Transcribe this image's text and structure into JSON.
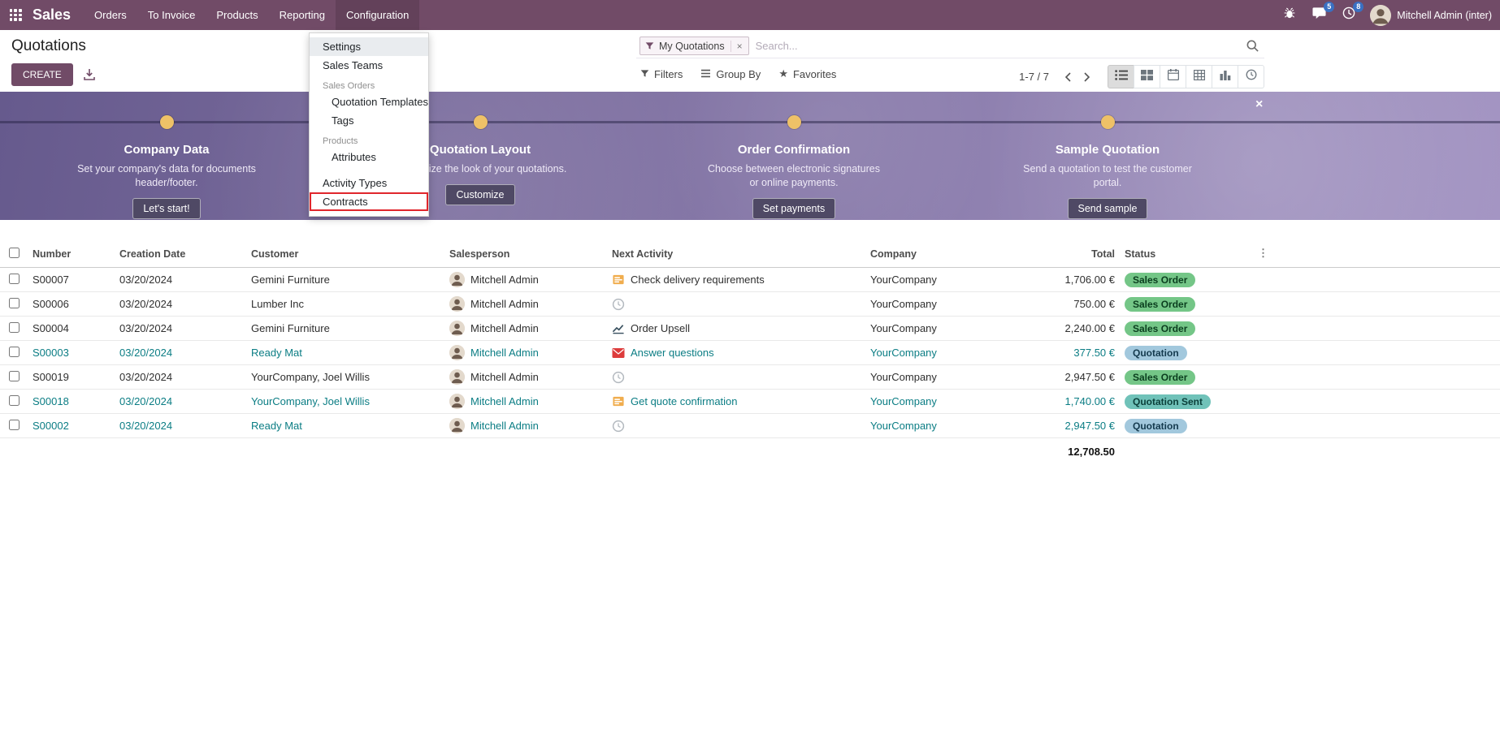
{
  "navbar": {
    "brand": "Sales",
    "items": [
      "Orders",
      "To Invoice",
      "Products",
      "Reporting",
      "Configuration"
    ],
    "active_item": "Configuration",
    "message_badge": "5",
    "activity_badge": "8",
    "user_name": "Mitchell Admin (inter)"
  },
  "control_panel": {
    "title": "Quotations",
    "create_label": "CREATE",
    "search": {
      "facet_label": "My Quotations",
      "remove_facet": "×",
      "placeholder": "Search..."
    },
    "filter_buttons": {
      "filters": "Filters",
      "group_by": "Group By",
      "favorites": "Favorites"
    },
    "pager": "1-7 / 7",
    "options_toggle": "⋮"
  },
  "config_menu": {
    "items": [
      {
        "label": "Settings",
        "kind": "item",
        "selected": true
      },
      {
        "label": "Sales Teams",
        "kind": "item"
      },
      {
        "label": "Sales Orders",
        "kind": "section"
      },
      {
        "label": "Quotation Templates",
        "kind": "subitem"
      },
      {
        "label": "Tags",
        "kind": "subitem"
      },
      {
        "label": "Products",
        "kind": "section"
      },
      {
        "label": "Attributes",
        "kind": "subitem"
      },
      {
        "label": "Activity Types",
        "kind": "item",
        "top_gap": true
      },
      {
        "label": "Contracts",
        "kind": "item",
        "annotated": true
      }
    ]
  },
  "onboarding": {
    "close": "×",
    "steps": [
      {
        "title": "Company Data",
        "description": "Set your company's data for documents header/footer.",
        "button": "Let's start!"
      },
      {
        "title": "Quotation Layout",
        "description": "Customize the look of your quotations.",
        "button": "Customize"
      },
      {
        "title": "Order Confirmation",
        "description": "Choose between electronic signatures or online payments.",
        "button": "Set payments"
      },
      {
        "title": "Sample Quotation",
        "description": "Send a quotation to test the customer portal.",
        "button": "Send sample"
      }
    ]
  },
  "table": {
    "columns": [
      "Number",
      "Creation Date",
      "Customer",
      "Salesperson",
      "Next Activity",
      "Company",
      "Total",
      "Status"
    ],
    "rows": [
      {
        "number": "S00007",
        "date": "03/20/2024",
        "customer": "Gemini Furniture",
        "salesperson": "Mitchell Admin",
        "activity_icon": "tasks",
        "activity": "Check delivery requirements",
        "company": "YourCompany",
        "total": "1,706.00 €",
        "status": "Sales Order",
        "status_kind": "success",
        "colored": false
      },
      {
        "number": "S00006",
        "date": "03/20/2024",
        "customer": "Lumber Inc",
        "salesperson": "Mitchell Admin",
        "activity_icon": "clock",
        "activity": "",
        "company": "YourCompany",
        "total": "750.00 €",
        "status": "Sales Order",
        "status_kind": "success",
        "colored": false
      },
      {
        "number": "S00004",
        "date": "03/20/2024",
        "customer": "Gemini Furniture",
        "salesperson": "Mitchell Admin",
        "activity_icon": "chart",
        "activity": "Order Upsell",
        "company": "YourCompany",
        "total": "2,240.00 €",
        "status": "Sales Order",
        "status_kind": "success",
        "colored": false
      },
      {
        "number": "S00003",
        "date": "03/20/2024",
        "customer": "Ready Mat",
        "salesperson": "Mitchell Admin",
        "activity_icon": "envelope",
        "activity": "Answer questions",
        "company": "YourCompany",
        "total": "377.50 €",
        "status": "Quotation",
        "status_kind": "info",
        "colored": true
      },
      {
        "number": "S00019",
        "date": "03/20/2024",
        "customer": "YourCompany, Joel Willis",
        "salesperson": "Mitchell Admin",
        "activity_icon": "clock",
        "activity": "",
        "company": "YourCompany",
        "total": "2,947.50 €",
        "status": "Sales Order",
        "status_kind": "success",
        "colored": false
      },
      {
        "number": "S00018",
        "date": "03/20/2024",
        "customer": "YourCompany, Joel Willis",
        "salesperson": "Mitchell Admin",
        "activity_icon": "tasks",
        "activity": "Get quote confirmation",
        "company": "YourCompany",
        "total": "1,740.00 €",
        "status": "Quotation Sent",
        "status_kind": "sent",
        "colored": true
      },
      {
        "number": "S00002",
        "date": "03/20/2024",
        "customer": "Ready Mat",
        "salesperson": "Mitchell Admin",
        "activity_icon": "clock",
        "activity": "",
        "company": "YourCompany",
        "total": "2,947.50 €",
        "status": "Quotation",
        "status_kind": "info",
        "colored": true
      }
    ],
    "footer_total": "12,708.50"
  },
  "colors": {
    "navbar": "#714B67",
    "accent": "#714B67",
    "teal_row_text": "#0b7d84",
    "status_success": "#74c687",
    "status_info": "#a2c8dd",
    "status_sent": "#70c2b9",
    "banner_dot": "#eec167"
  }
}
